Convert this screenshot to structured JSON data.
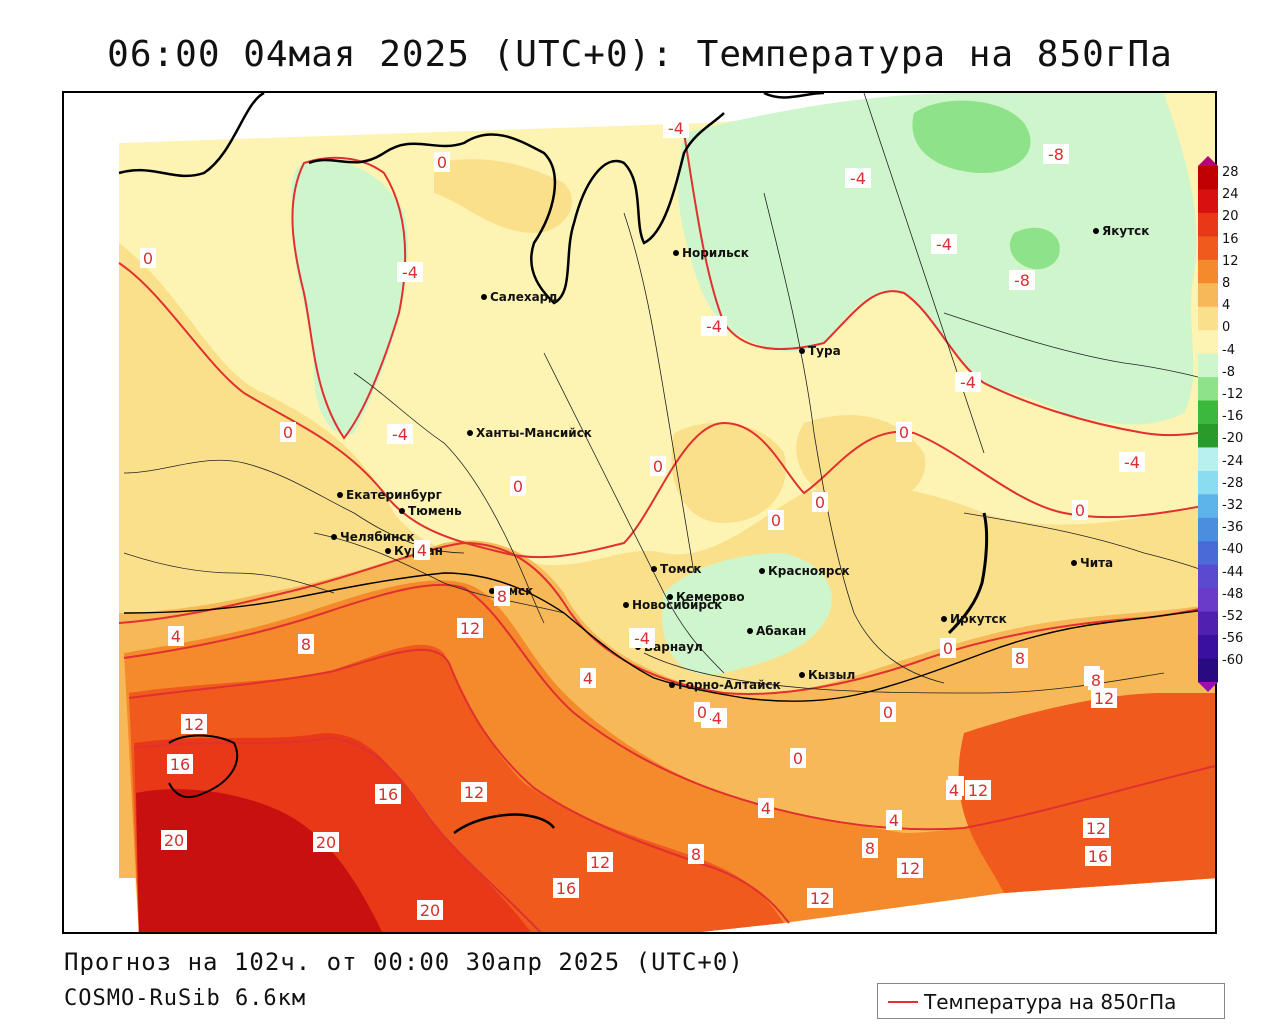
{
  "title": "06:00 04мая 2025 (UTC+0): Температура на 850гПа",
  "footer": {
    "forecast": "Прогноз на 102ч. от 00:00 30апр 2025 (UTC+0)",
    "model": "COSMO-RuSib 6.6км"
  },
  "legend": {
    "label": "Температура на 850гПа",
    "line_color": "#e03030"
  },
  "colorbar": {
    "labels": [
      "28",
      "24",
      "20",
      "16",
      "12",
      "8",
      "4",
      "0",
      "-4",
      "-8",
      "-12",
      "-16",
      "-20",
      "-24",
      "-28",
      "-32",
      "-36",
      "-40",
      "-44",
      "-48",
      "-52",
      "-56",
      "-60"
    ],
    "colors": [
      "#b4007a",
      "#c00000",
      "#d81010",
      "#e83818",
      "#f05a1c",
      "#f58a2c",
      "#f7b858",
      "#fbe08c",
      "#fdf4b4",
      "#cff5cc",
      "#8ee28a",
      "#3cb83c",
      "#2a9a2a",
      "#b8f0f0",
      "#8adcf0",
      "#5cb4ea",
      "#4a8ee0",
      "#4a6ad8",
      "#5a4ad0",
      "#6a3ac8",
      "#5020b0",
      "#3a10a0",
      "#2a0a80",
      "#9a10b0"
    ]
  },
  "cities": [
    {
      "name": "Салехард"
    },
    {
      "name": "Норильск"
    },
    {
      "name": "Якутск"
    },
    {
      "name": "Тура"
    },
    {
      "name": "Ханты-Мансийск"
    },
    {
      "name": "Екатеринбург"
    },
    {
      "name": "Тюмень"
    },
    {
      "name": "Челябинск"
    },
    {
      "name": "Курган"
    },
    {
      "name": "Омск"
    },
    {
      "name": "Новосибирск"
    },
    {
      "name": "Томск"
    },
    {
      "name": "Кемерово"
    },
    {
      "name": "Красноярск"
    },
    {
      "name": "Абакан"
    },
    {
      "name": "Барнаул"
    },
    {
      "name": "Горно-Алтайск"
    },
    {
      "name": "Кызыл"
    },
    {
      "name": "Иркутск"
    },
    {
      "name": "Чита"
    }
  ],
  "isoline_labels": [
    {
      "text": "-4"
    },
    {
      "text": "-8"
    },
    {
      "text": "-4"
    },
    {
      "text": "0"
    },
    {
      "text": "-4"
    },
    {
      "text": "0"
    },
    {
      "text": "-4"
    },
    {
      "text": "-8"
    },
    {
      "text": "-4"
    },
    {
      "text": "-4"
    },
    {
      "text": "-4"
    },
    {
      "text": "0"
    },
    {
      "text": "-4"
    },
    {
      "text": "0"
    },
    {
      "text": "0"
    },
    {
      "text": "0"
    },
    {
      "text": "0"
    },
    {
      "text": "0"
    },
    {
      "text": "0"
    },
    {
      "text": "-4"
    },
    {
      "text": "4"
    },
    {
      "text": "4"
    },
    {
      "text": "8"
    },
    {
      "text": "8"
    },
    {
      "text": "12"
    },
    {
      "text": "-4"
    },
    {
      "text": "4"
    },
    {
      "text": "0"
    },
    {
      "text": "0"
    },
    {
      "text": "4"
    },
    {
      "text": "0"
    },
    {
      "text": "8"
    },
    {
      "text": "8"
    },
    {
      "text": "12"
    },
    {
      "text": "12"
    },
    {
      "text": "16"
    },
    {
      "text": "16"
    },
    {
      "text": "12"
    },
    {
      "text": "20"
    },
    {
      "text": "20"
    },
    {
      "text": "12"
    },
    {
      "text": "16"
    },
    {
      "text": "20"
    },
    {
      "text": "8"
    },
    {
      "text": "4"
    },
    {
      "text": "0"
    },
    {
      "text": "8"
    },
    {
      "text": "4"
    },
    {
      "text": "12"
    },
    {
      "text": "8"
    },
    {
      "text": "12"
    },
    {
      "text": "12"
    },
    {
      "text": "16"
    },
    {
      "text": "4"
    },
    {
      "text": "12"
    }
  ]
}
